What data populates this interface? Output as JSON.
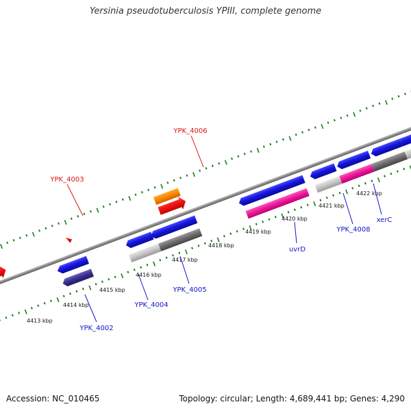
{
  "title": "Yersinia pseudotuberculosis YPIII, complete genome",
  "footer": {
    "accession": "Accession: NC_010465",
    "summary": "Topology: circular; Length: 4,689,441 bp; Genes: 4,290"
  },
  "colors": {
    "backbone": "#8a8a8a",
    "tick": "#1e7a1e",
    "label_forward": "#dd1111",
    "label_reverse": "#1111cc",
    "leader_forward": "#dd1111",
    "leader_reverse": "#1111cc"
  },
  "kbp_labels": [
    "4413 kbp",
    "4414 kbp",
    "4415 kbp",
    "4416 kbp",
    "4417 kbp",
    "4418 kbp",
    "4419 kbp",
    "4420 kbp",
    "4421 kbp",
    "4422 kbp"
  ],
  "features": [
    {
      "name": "YPK_4002",
      "color": "#1a1ae0",
      "strand": "reverse",
      "labeled": true
    },
    {
      "name": "YPK_4003",
      "color": "#ee1111",
      "strand": "forward",
      "labeled": true
    },
    {
      "name": "YPK_4004",
      "color": "#1a1ae0",
      "strand": "reverse",
      "labeled": true
    },
    {
      "name": "YPK_4005",
      "color": "#1a1ae0",
      "strand": "reverse",
      "labeled": true
    },
    {
      "name": "YPK_4006",
      "color": "#ff8800",
      "strand": "forward",
      "labeled": true
    },
    {
      "name": "uvrD",
      "color": "#1a1ae0",
      "strand": "reverse",
      "labeled": true
    },
    {
      "name": "YPK_4008",
      "color": "#1a1ae0",
      "strand": "reverse",
      "labeled": true
    },
    {
      "name": "xerC",
      "color": "#1a1ae0",
      "strand": "reverse",
      "labeled": true
    }
  ]
}
